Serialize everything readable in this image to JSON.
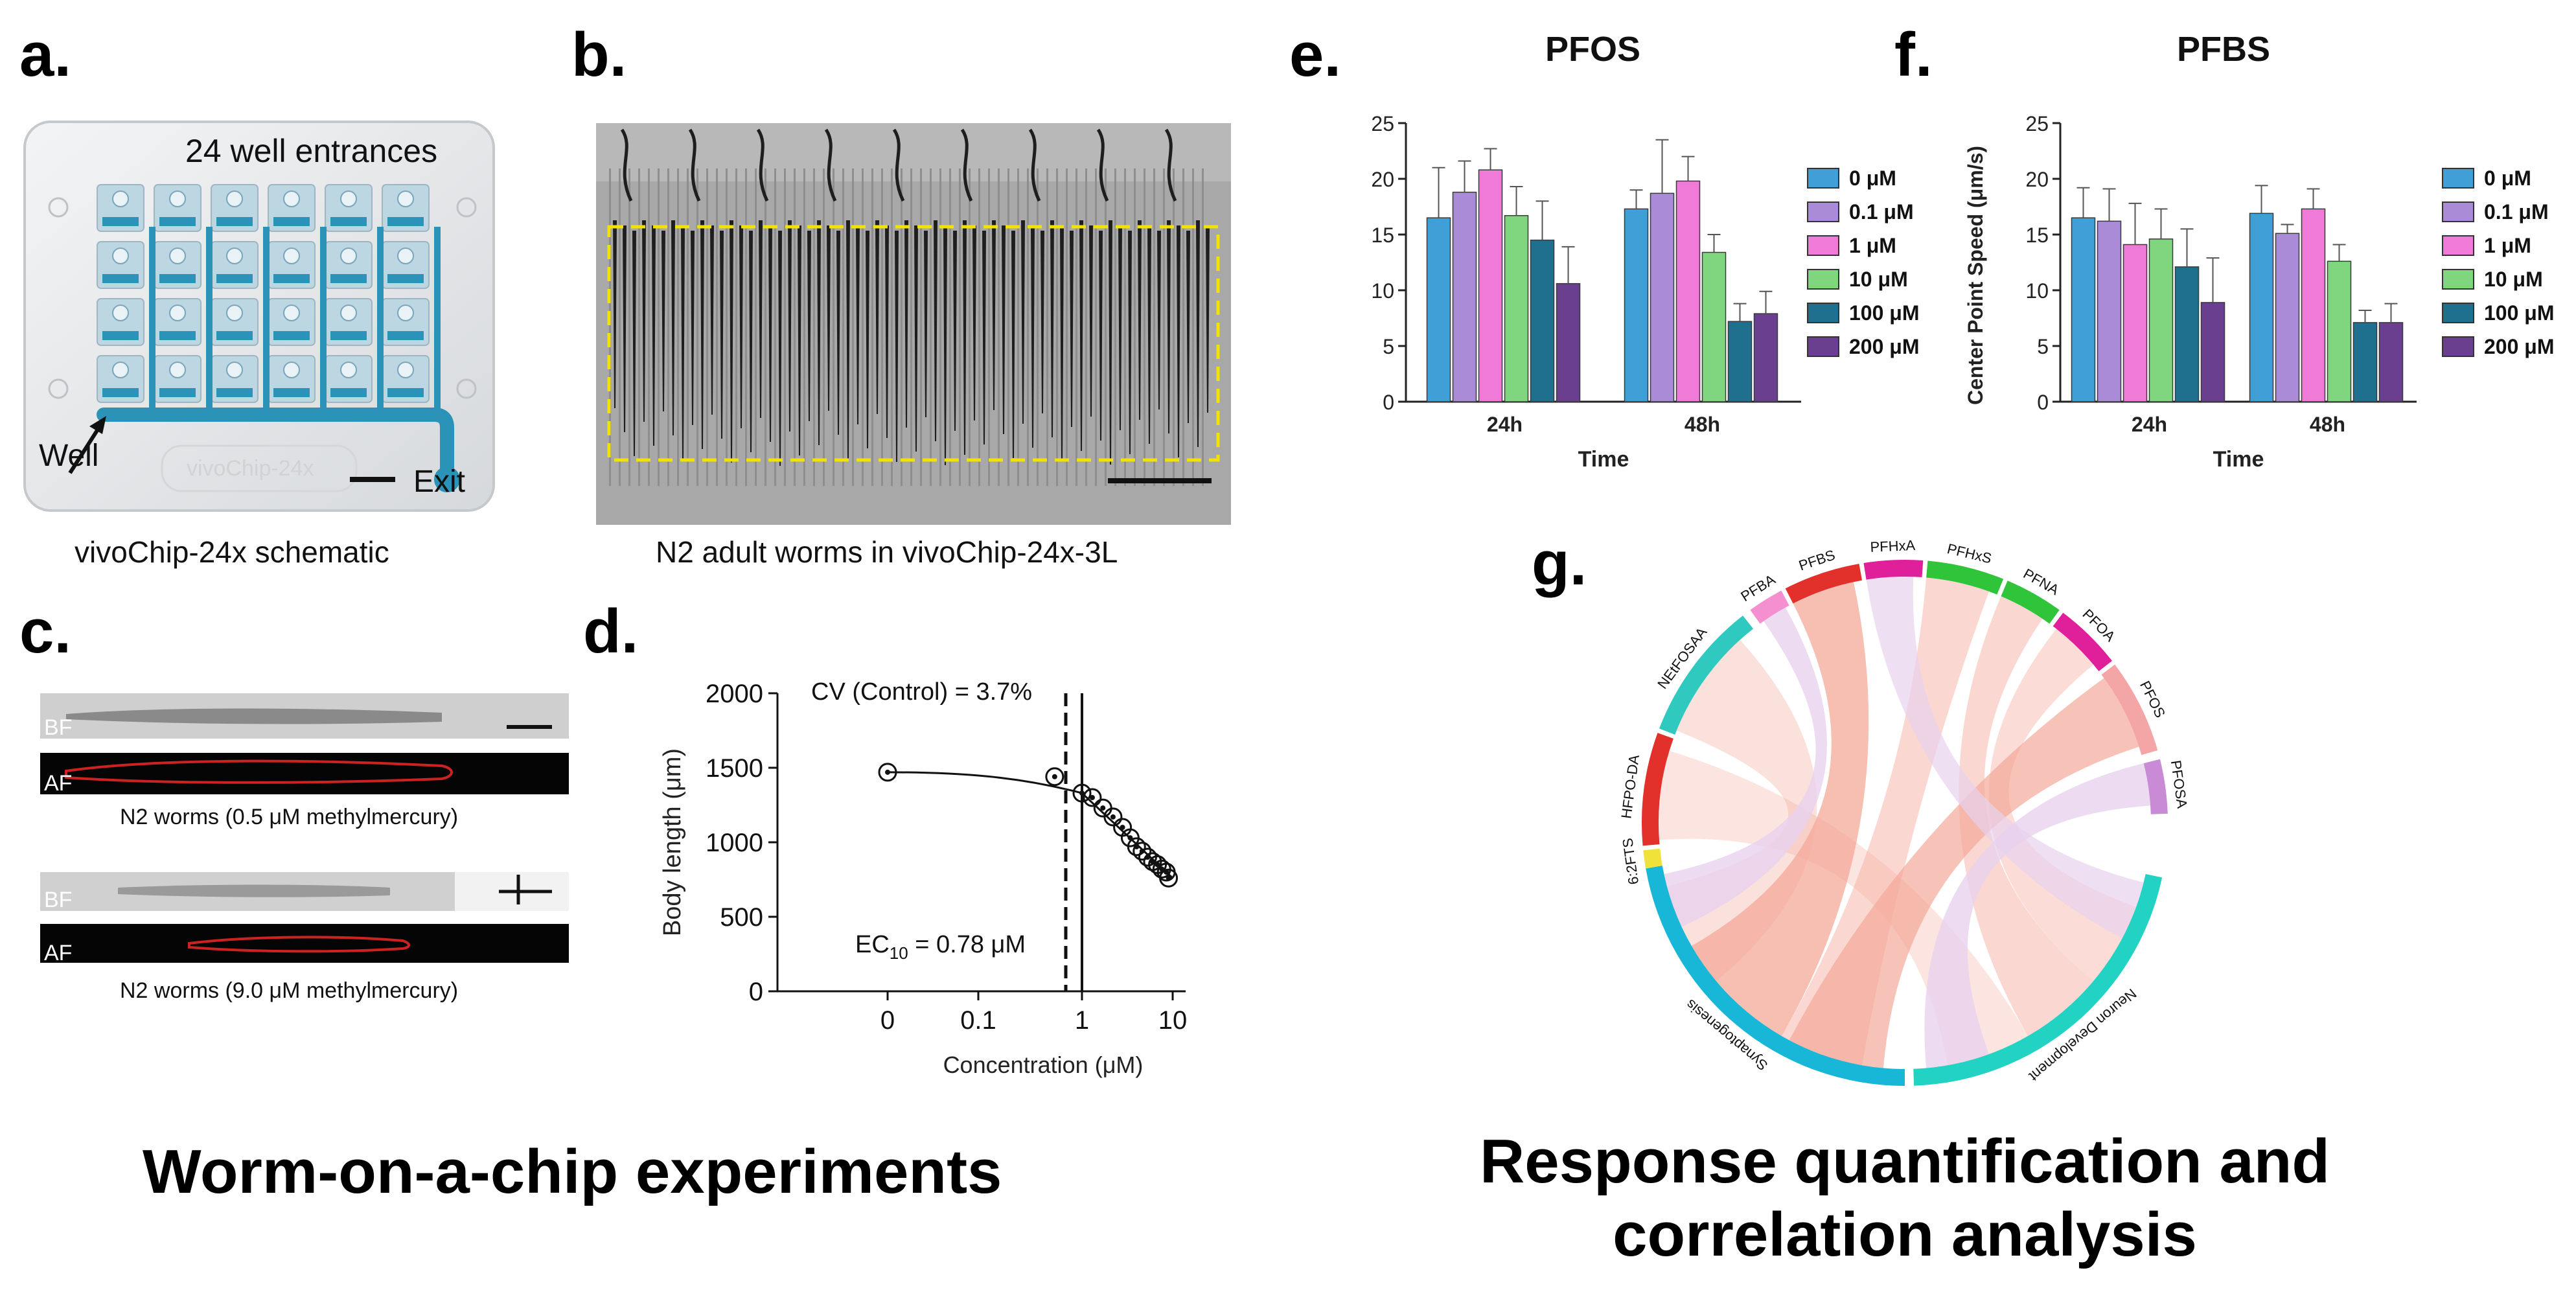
{
  "panels": {
    "a": {
      "label": "a.",
      "header": "24 well entrances",
      "well_label": "Well",
      "exit_label": "Exit",
      "chip_watermark": "vivoChip-24x",
      "caption": "vivoChip-24x schematic",
      "colors": {
        "channel": "#2b93b8",
        "plate": "#e6e8ea",
        "well": "#bcd6e2"
      }
    },
    "b": {
      "label": "b.",
      "caption": "N2 adult worms in vivoChip-24x-3L",
      "colors": {
        "background": "#a8a8a8",
        "worm": "#222222",
        "box": "#f2e200"
      }
    },
    "c": {
      "label": "c.",
      "tag_bf": "BF",
      "tag_af": "AF",
      "caption1": "N2 worms (0.5 μM methylmercury)",
      "caption2": "N2 worms (9.0 μM methylmercury)"
    },
    "d": {
      "label": "d.",
      "cv_text": "CV (Control) = 3.7%",
      "ec_prefix": "EC",
      "ec_sub": "10",
      "ec_suffix": " = 0.78 μM",
      "xlabel": "Concentration (μM)",
      "ylabel": "Body length (μm)"
    },
    "e": {
      "label": "e."
    },
    "f": {
      "label": "f."
    },
    "g": {
      "label": "g.",
      "colors": {
        "ribbon": "#f4a898",
        "ribbon_light": "#e8d2ee"
      }
    }
  },
  "headings": {
    "left": "Worm-on-a-chip experiments",
    "right_line1": "Response quantification and",
    "right_line2": "correlation analysis"
  },
  "chart_data": [
    {
      "id": "d",
      "type": "scatter",
      "title": "",
      "xlabel": "Concentration (μM)",
      "ylabel": "Body length (μm)",
      "x_ticks": [
        "0",
        "0.1",
        "1",
        "10"
      ],
      "y_ticks": [
        "0",
        "500",
        "1000",
        "1500",
        "2000"
      ],
      "ylim": [
        0,
        2000
      ],
      "x": [
        0,
        0.5,
        1.0,
        1.3,
        1.7,
        2.2,
        2.8,
        3.4,
        4.0,
        4.6,
        5.3,
        6.0,
        6.8,
        7.6,
        8.5,
        9.0
      ],
      "y": [
        1470,
        1440,
        1330,
        1300,
        1230,
        1170,
        1100,
        1030,
        970,
        940,
        900,
        870,
        850,
        820,
        800,
        760
      ],
      "annotations": [
        "CV (Control) = 3.7%",
        "EC10 = 0.78 μM"
      ]
    },
    {
      "id": "e",
      "type": "bar",
      "title": "PFOS",
      "xlabel": "Time",
      "ylabel": "",
      "categories": [
        "24h",
        "48h"
      ],
      "y_ticks": [
        "0",
        "5",
        "10",
        "15",
        "20",
        "25"
      ],
      "ylim": [
        0,
        25
      ],
      "series": [
        {
          "name": "0 μM",
          "color": "#3f9fd6",
          "values": [
            16.5,
            17.3
          ],
          "errors": [
            4.5,
            1.7
          ]
        },
        {
          "name": "0.1 μM",
          "color": "#a98bd8",
          "values": [
            18.8,
            18.7
          ],
          "errors": [
            2.8,
            4.8
          ]
        },
        {
          "name": "1 μM",
          "color": "#f07ad8",
          "values": [
            20.8,
            19.8
          ],
          "errors": [
            1.9,
            2.2
          ]
        },
        {
          "name": "10 μM",
          "color": "#7fd67f",
          "values": [
            16.7,
            13.4
          ],
          "errors": [
            2.6,
            1.6
          ]
        },
        {
          "name": "100 μM",
          "color": "#1f6f8f",
          "values": [
            14.5,
            7.2
          ],
          "errors": [
            3.5,
            1.6
          ]
        },
        {
          "name": "200 μM",
          "color": "#6a3f8f",
          "values": [
            10.6,
            7.9
          ],
          "errors": [
            3.3,
            2.0
          ]
        }
      ]
    },
    {
      "id": "f",
      "type": "bar",
      "title": "PFBS",
      "xlabel": "Time",
      "ylabel": "Center Point Speed (μm/s)",
      "categories": [
        "24h",
        "48h"
      ],
      "y_ticks": [
        "0",
        "5",
        "10",
        "15",
        "20",
        "25"
      ],
      "ylim": [
        0,
        25
      ],
      "series": [
        {
          "name": "0 μM",
          "color": "#3f9fd6",
          "values": [
            16.5,
            16.9
          ],
          "errors": [
            2.7,
            2.5
          ]
        },
        {
          "name": "0.1 μM",
          "color": "#a98bd8",
          "values": [
            16.2,
            15.1
          ],
          "errors": [
            2.9,
            0.8
          ]
        },
        {
          "name": "1 μM",
          "color": "#f07ad8",
          "values": [
            14.1,
            17.3
          ],
          "errors": [
            3.7,
            1.8
          ]
        },
        {
          "name": "10 μM",
          "color": "#7fd67f",
          "values": [
            14.6,
            12.6
          ],
          "errors": [
            2.7,
            1.5
          ]
        },
        {
          "name": "100 μM",
          "color": "#1f6f8f",
          "values": [
            12.1,
            7.1
          ],
          "errors": [
            3.4,
            1.1
          ]
        },
        {
          "name": "200 μM",
          "color": "#6a3f8f",
          "values": [
            8.9,
            7.1
          ],
          "errors": [
            4.0,
            1.7
          ]
        }
      ]
    },
    {
      "id": "g",
      "type": "chord",
      "nodes": [
        {
          "name": "PFBA",
          "color": "#f48fd0"
        },
        {
          "name": "PFBS",
          "color": "#e2302b"
        },
        {
          "name": "PFHxA",
          "color": "#e0209a"
        },
        {
          "name": "PFHxS",
          "color": "#2fc43a"
        },
        {
          "name": "PFNA",
          "color": "#2fc43a"
        },
        {
          "name": "PFOA",
          "color": "#e0209a"
        },
        {
          "name": "PFOS",
          "color": "#f4a6a6"
        },
        {
          "name": "PFOSA",
          "color": "#c98ad6"
        },
        {
          "name": "Neuron Development",
          "color": "#22d2c2"
        },
        {
          "name": "Synaptogenesis",
          "color": "#18b7d8"
        },
        {
          "name": "6:2FTS",
          "color": "#f1e23a"
        },
        {
          "name": "HFPO-DA",
          "color": "#e2302b"
        },
        {
          "name": "NEtFOSAA",
          "color": "#2fc9c0"
        }
      ]
    }
  ]
}
